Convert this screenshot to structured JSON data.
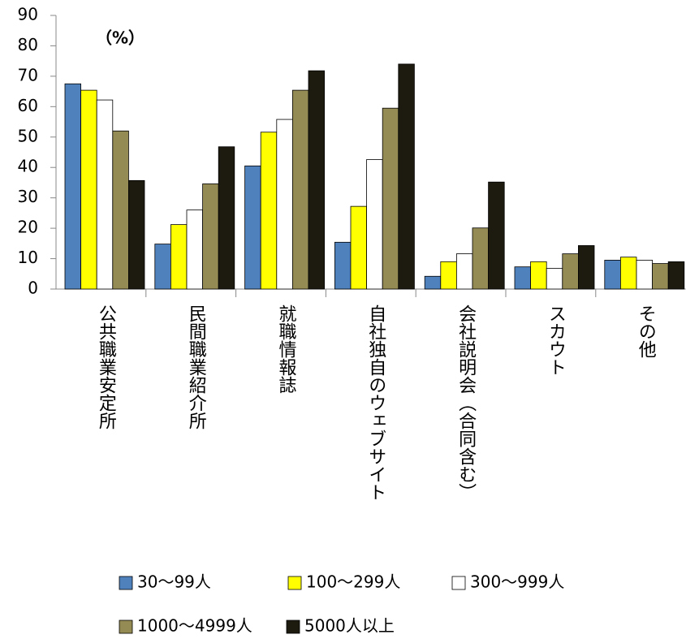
{
  "chart_data": {
    "type": "bar",
    "annotation": "（%）",
    "categories": [
      "公共職業安定所",
      "民間職業紹介所",
      "就職情報誌",
      "自社独自のウェブサイト",
      "会社説明会（合同含む）",
      "スカウト",
      "その他"
    ],
    "series": [
      {
        "name": "30〜99人",
        "color": "#4f81bd",
        "values": [
          67.5,
          14.8,
          40.5,
          15.4,
          4.2,
          7.3,
          9.5
        ]
      },
      {
        "name": "100〜299人",
        "color": "#ffff00",
        "values": [
          65.4,
          21.2,
          51.6,
          27.2,
          9.0,
          9.0,
          10.5
        ]
      },
      {
        "name": "300〜999人",
        "color": "#ffffff",
        "values": [
          62.2,
          26.0,
          55.8,
          42.6,
          11.6,
          6.8,
          9.5
        ]
      },
      {
        "name": "1000〜4999人",
        "color": "#948a54",
        "values": [
          52.0,
          34.6,
          65.4,
          59.5,
          20.1,
          11.6,
          8.4
        ]
      },
      {
        "name": "5000人以上",
        "color": "#1d1b10",
        "values": [
          35.7,
          46.8,
          71.8,
          74.0,
          35.2,
          14.3,
          9.0
        ]
      }
    ],
    "ylim": [
      0,
      90
    ],
    "yticks": [
      0,
      10,
      20,
      30,
      40,
      50,
      60,
      70,
      80,
      90
    ]
  }
}
